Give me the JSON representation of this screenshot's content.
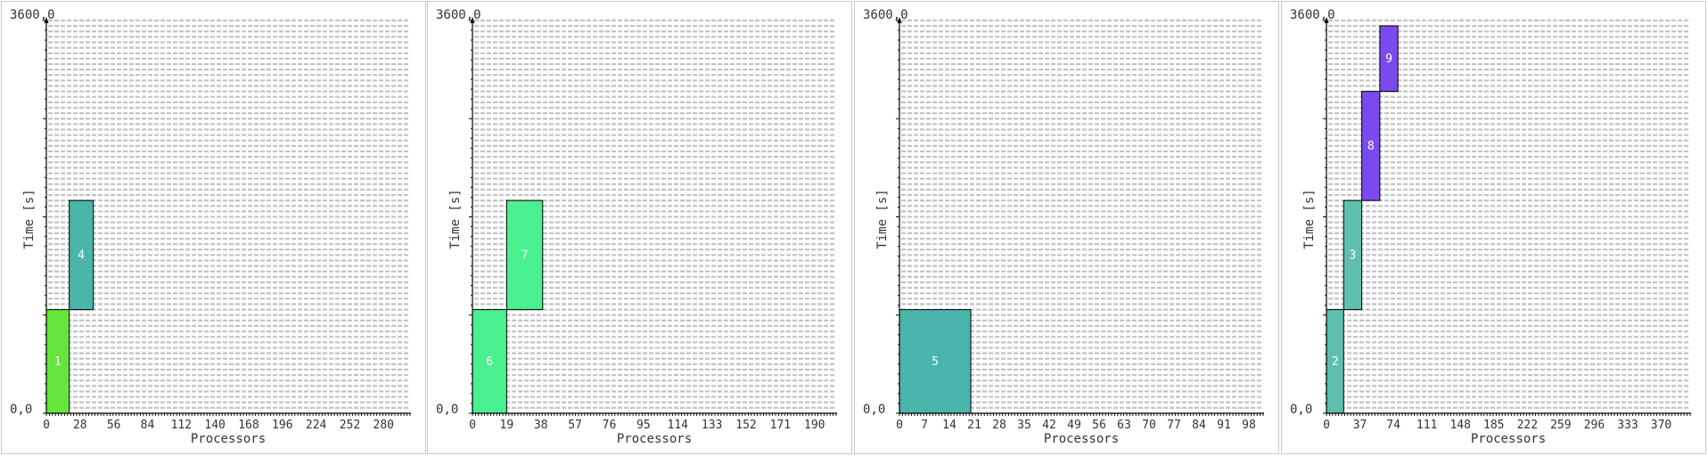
{
  "common": {
    "ylabel": "Time [s]",
    "xlabel": "Processors",
    "ytop_label": "3600,0",
    "origin_label": "0,0"
  },
  "chart_data": [
    {
      "type": "bar",
      "xlabel": "Processors",
      "ylabel": "Time [s]",
      "ylim": [
        0,
        3600
      ],
      "xlim": [
        0,
        302
      ],
      "grid": true,
      "x_ticks": [
        "0",
        "28",
        "56",
        "84",
        "112",
        "140",
        "168",
        "196",
        "224",
        "252",
        "280"
      ],
      "jobs": [
        {
          "id": "1",
          "x0": 0,
          "x1": 19,
          "y0": 0,
          "y1": 950,
          "color": "#66e63a"
        },
        {
          "id": "4",
          "x0": 19,
          "x1": 39,
          "y0": 950,
          "y1": 1950,
          "color": "#4ab5aa"
        }
      ]
    },
    {
      "type": "bar",
      "xlabel": "Processors",
      "ylabel": "Time [s]",
      "ylim": [
        0,
        3600
      ],
      "xlim": [
        0,
        202
      ],
      "grid": true,
      "x_ticks": [
        "0",
        "19",
        "38",
        "57",
        "76",
        "95",
        "114",
        "133",
        "152",
        "171",
        "190"
      ],
      "jobs": [
        {
          "id": "6",
          "x0": 0,
          "x1": 19,
          "y0": 0,
          "y1": 950,
          "color": "#4af08f"
        },
        {
          "id": "7",
          "x0": 19,
          "x1": 39,
          "y0": 950,
          "y1": 1950,
          "color": "#4af08f"
        }
      ]
    },
    {
      "type": "bar",
      "xlabel": "Processors",
      "ylabel": "Time [s]",
      "ylim": [
        0,
        3600
      ],
      "xlim": [
        0,
        102
      ],
      "grid": true,
      "x_ticks": [
        "0",
        "7",
        "14",
        "21",
        "28",
        "35",
        "42",
        "49",
        "56",
        "63",
        "70",
        "77",
        "84",
        "91",
        "98"
      ],
      "jobs": [
        {
          "id": "5",
          "x0": 0,
          "x1": 20,
          "y0": 0,
          "y1": 950,
          "color": "#4ab5aa"
        }
      ]
    },
    {
      "type": "bar",
      "xlabel": "Processors",
      "ylabel": "Time [s]",
      "ylim": [
        0,
        3600
      ],
      "xlim": [
        0,
        402
      ],
      "grid": true,
      "x_ticks": [
        "0",
        "37",
        "74",
        "111",
        "148",
        "185",
        "222",
        "259",
        "296",
        "333",
        "370"
      ],
      "jobs": [
        {
          "id": "2",
          "x0": 0,
          "x1": 19,
          "y0": 0,
          "y1": 950,
          "color": "#5fbfad"
        },
        {
          "id": "3",
          "x0": 19,
          "x1": 39,
          "y0": 950,
          "y1": 1950,
          "color": "#5fbfad"
        },
        {
          "id": "8",
          "x0": 39,
          "x1": 59,
          "y0": 1950,
          "y1": 2950,
          "color": "#7b4aee"
        },
        {
          "id": "9",
          "x0": 59,
          "x1": 79,
          "y0": 2950,
          "y1": 3850,
          "color": "#7b4aee"
        }
      ]
    }
  ]
}
